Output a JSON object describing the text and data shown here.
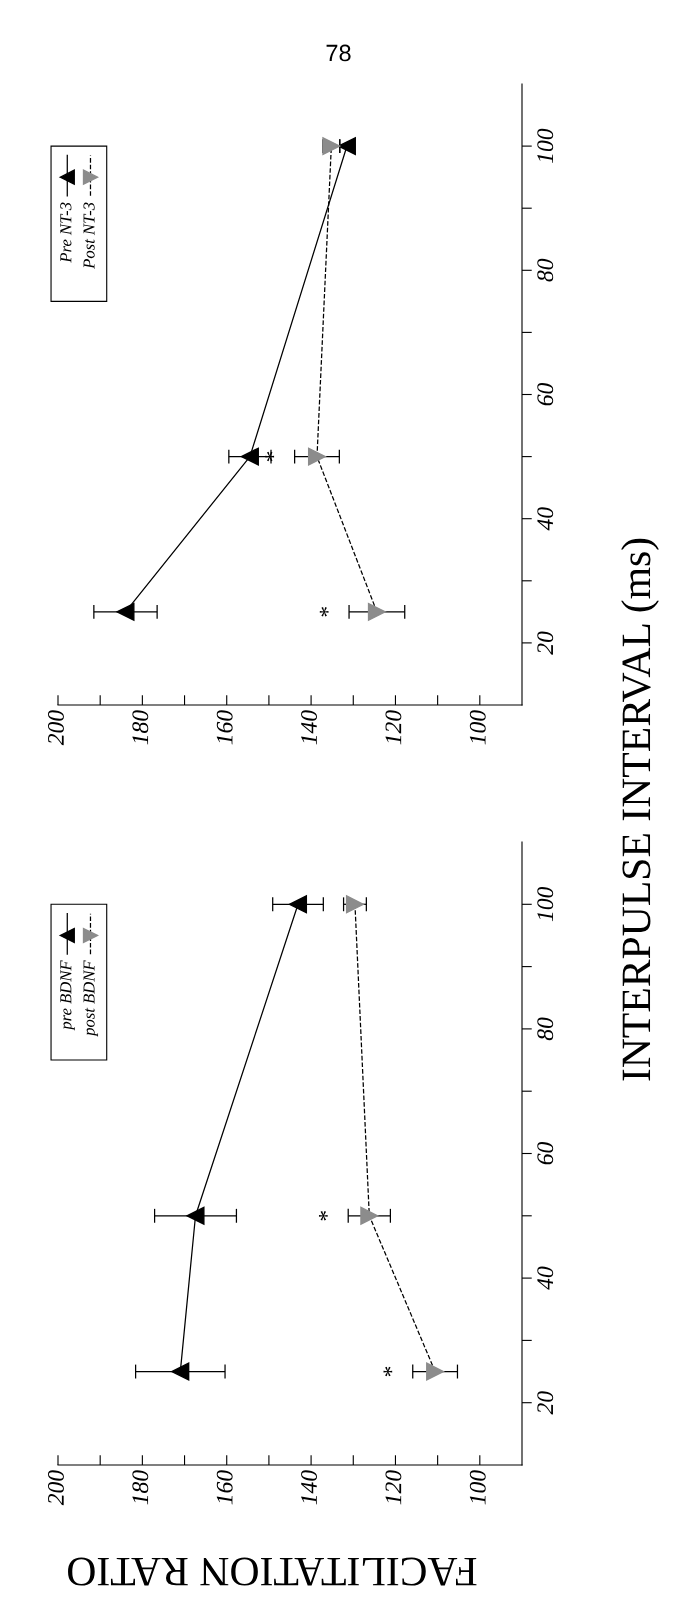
{
  "chart_data": [
    {
      "type": "line",
      "xlabel": "FACILITATION RATIO",
      "ylabel": "INTERPULSE INTERVAL (ms)",
      "annotations": [
        "78",
        "*",
        "*"
      ],
      "xlim": [
        200,
        90
      ],
      "xticks": [
        200,
        {
          "value": 190,
          "label": null
        },
        180,
        {
          "value": 170,
          "label": null
        },
        160,
        {
          "value": 150,
          "label": null
        },
        140,
        {
          "value": 130,
          "label": null
        },
        120,
        {
          "value": 110,
          "label": null
        },
        100
      ],
      "ylim": [
        10,
        110
      ],
      "yticks": [
        20,
        {
          "value": 30,
          "label": null
        },
        40,
        {
          "value": 50,
          "label": null
        },
        60,
        {
          "value": 70,
          "label": null
        },
        80,
        {
          "value": 90,
          "label": null
        },
        100
      ],
      "marker": "triangle",
      "legend": "top left",
      "grid": false,
      "series": [
        {
          "name": "pre BDNF",
          "color": "#000000",
          "line_style": "solid",
          "x": [
            171,
            167.4,
            143.1
          ],
          "values": [
            25,
            50,
            100
          ],
          "xerrors": [
            10.6,
            9.7,
            6
          ]
        },
        {
          "name": "post BDNF",
          "color": "#8c8c8c",
          "line_style": "dashed",
          "x": [
            110.6,
            126.2,
            129.6
          ],
          "values": [
            25,
            50,
            100
          ],
          "xerrors": [
            5.3,
            5,
            2.7
          ]
        }
      ]
    },
    {
      "type": "line",
      "annotations": [
        "*",
        "*"
      ],
      "xlim": [
        200,
        90
      ],
      "xticks": [
        200,
        {
          "value": 190,
          "label": null
        },
        180,
        {
          "value": 170,
          "label": null
        },
        160,
        {
          "value": 150,
          "label": null
        },
        140,
        {
          "value": 130,
          "label": null
        },
        120,
        {
          "value": 110,
          "label": null
        },
        100
      ],
      "ylim": [
        10,
        110
      ],
      "yticks": [
        20,
        {
          "value": 30,
          "label": null
        },
        40,
        {
          "value": 50,
          "label": null
        },
        60,
        {
          "value": 70,
          "label": null
        },
        80,
        {
          "value": 90,
          "label": null
        },
        100
      ],
      "marker": "triangle",
      "legend": "top left",
      "grid": false,
      "series": [
        {
          "name": "Pre NT-3",
          "color": "#000000",
          "line_style": "solid",
          "x": [
            184,
            154.5,
            131.5
          ],
          "values": [
            25,
            50,
            100
          ],
          "xerrors": [
            7.5,
            5,
            1.7
          ]
        },
        {
          "name": "Post NT-3",
          "color": "#8c8c8c",
          "line_style": "dashed",
          "x": [
            124.4,
            138.6,
            135.2
          ],
          "values": [
            25,
            50,
            100
          ],
          "xerrors": [
            6.6,
            5.3,
            2
          ]
        }
      ]
    }
  ]
}
